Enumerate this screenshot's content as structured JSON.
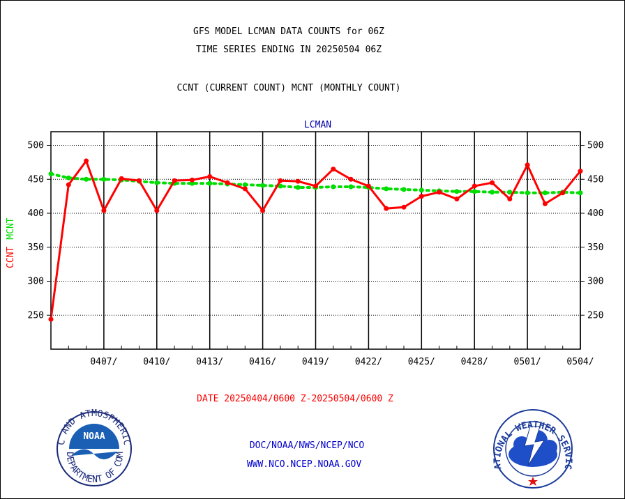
{
  "header": {
    "title_line1": "GFS MODEL LCMAN DATA COUNTS for 06Z",
    "title_line2": "TIME SERIES ENDING IN 20250504 06Z",
    "subtitle": "CCNT (CURRENT COUNT) MCNT (MONTHLY COUNT)"
  },
  "footer": {
    "date_range": "DATE 20250404/0600 Z-20250504/0600 Z",
    "org_line": "DOC/NOAA/NWS/NCEP/NCO",
    "url_line": "WWW.NCO.NCEP.NOAA.GOV"
  },
  "logos": {
    "noaa_text": "NOAA",
    "noaa_ring_top": "NATIONAL OCEANIC AND ATMOSPHERIC ADMINISTRATION",
    "noaa_ring_bottom": "U.S. DEPARTMENT OF COMMERCE",
    "nws_ring": "NATIONAL WEATHER SERVICE"
  },
  "chart_data": {
    "type": "line",
    "title": "LCMAN",
    "xlabel": "",
    "ylabel_series": [
      "CCNT",
      "MCNT"
    ],
    "ylim": [
      200,
      520
    ],
    "yticks": [
      250,
      300,
      350,
      400,
      450,
      500
    ],
    "xlim": [
      0,
      30
    ],
    "xticks": [
      {
        "x": 3,
        "label": "0407/"
      },
      {
        "x": 6,
        "label": "0410/"
      },
      {
        "x": 9,
        "label": "0413/"
      },
      {
        "x": 12,
        "label": "0416/"
      },
      {
        "x": 15,
        "label": "0419/"
      },
      {
        "x": 18,
        "label": "0422/"
      },
      {
        "x": 21,
        "label": "0425/"
      },
      {
        "x": 24,
        "label": "0428/"
      },
      {
        "x": 27,
        "label": "0501/"
      },
      {
        "x": 30,
        "label": "0504/"
      }
    ],
    "grid": true,
    "series": [
      {
        "name": "CCNT",
        "color": "#ff0000",
        "style": "solid",
        "values": [
          244,
          442,
          477,
          404,
          451,
          448,
          404,
          448,
          449,
          454,
          445,
          436,
          404,
          448,
          447,
          440,
          465,
          450,
          440,
          407,
          409,
          425,
          431,
          421,
          440,
          445,
          421,
          471,
          414,
          430,
          462
        ]
      },
      {
        "name": "MCNT",
        "color": "#00dd00",
        "style": "dotted",
        "values": [
          458,
          452,
          450,
          450,
          449,
          447,
          445,
          444,
          444,
          444,
          443,
          442,
          441,
          440,
          438,
          438,
          439,
          439,
          438,
          436,
          435,
          434,
          433,
          432,
          432,
          431,
          431,
          430,
          430,
          431,
          430
        ]
      }
    ]
  },
  "colors": {
    "ccnt": "#ff0000",
    "mcnt": "#00dd00",
    "title_blue": "#0000aa",
    "date_red": "#ff0000",
    "org_blue": "#0000cc"
  }
}
